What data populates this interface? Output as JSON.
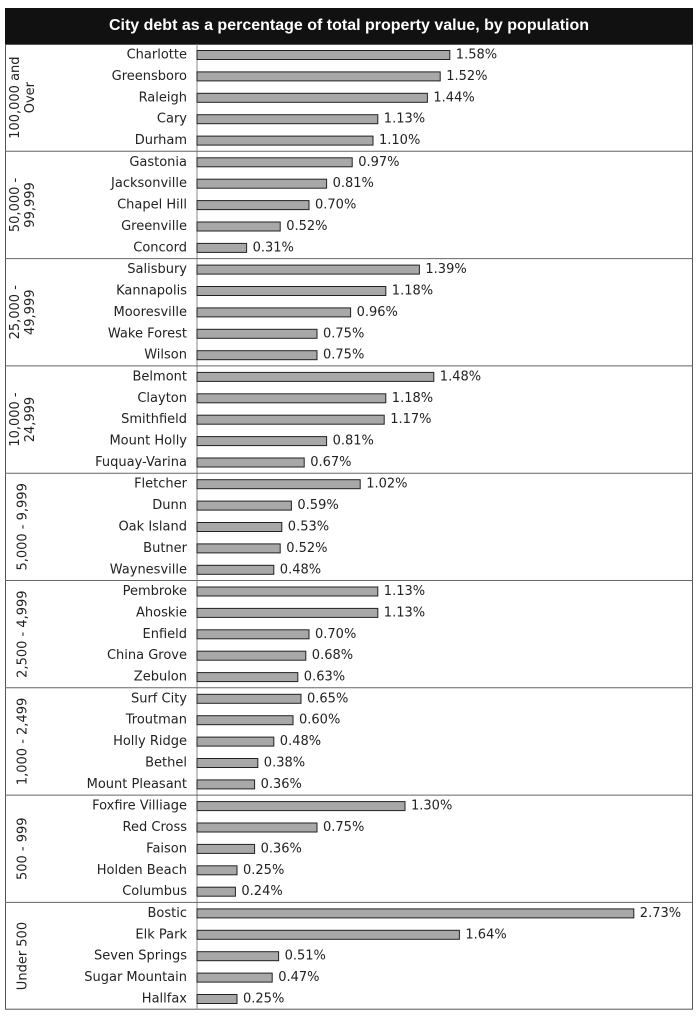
{
  "chart_data": {
    "type": "bar",
    "orientation": "horizontal",
    "title": "City debt as a percentage of total property value, by population",
    "value_format": "percent",
    "xlim": [
      0,
      2.8
    ],
    "grid": false,
    "bar_color": "#a8a8a8",
    "groups": [
      {
        "name": "100,000 and Over",
        "lines": [
          "100,000 and",
          "Over"
        ],
        "categories": [
          "Charlotte",
          "Greensboro",
          "Raleigh",
          "Cary",
          "Durham"
        ],
        "values": [
          1.58,
          1.52,
          1.44,
          1.13,
          1.1
        ]
      },
      {
        "name": "50,000 - 99,999",
        "lines": [
          "50,000 -",
          "99,999"
        ],
        "categories": [
          "Gastonia",
          "Jacksonville",
          "Chapel Hill",
          "Greenville",
          "Concord"
        ],
        "values": [
          0.97,
          0.81,
          0.7,
          0.52,
          0.31
        ]
      },
      {
        "name": "25,000 - 49,999",
        "lines": [
          "25,000 -",
          "49,999"
        ],
        "categories": [
          "Salisbury",
          "Kannapolis",
          "Mooresville",
          "Wake Forest",
          "Wilson"
        ],
        "values": [
          1.39,
          1.18,
          0.96,
          0.75,
          0.75
        ]
      },
      {
        "name": "10,000 - 24,999",
        "lines": [
          "10,000 -",
          "24,999"
        ],
        "categories": [
          "Belmont",
          "Clayton",
          "Smithfield",
          "Mount Holly",
          "Fuquay-Varina"
        ],
        "values": [
          1.48,
          1.18,
          1.17,
          0.81,
          0.67
        ]
      },
      {
        "name": "5,000 - 9,999",
        "lines": [
          "5,000 - 9,999"
        ],
        "categories": [
          "Fletcher",
          "Dunn",
          "Oak Island",
          "Butner",
          "Waynesville"
        ],
        "values": [
          1.02,
          0.59,
          0.53,
          0.52,
          0.48
        ]
      },
      {
        "name": "2,500 - 4,999",
        "lines": [
          "2,500 - 4,999"
        ],
        "categories": [
          "Pembroke",
          "Ahoskie",
          "Enfield",
          "China Grove",
          "Zebulon"
        ],
        "values": [
          1.13,
          1.13,
          0.7,
          0.68,
          0.63
        ]
      },
      {
        "name": "1,000 - 2,499",
        "lines": [
          "1,000 - 2,499"
        ],
        "categories": [
          "Surf City",
          "Troutman",
          "Holly Ridge",
          "Bethel",
          "Mount Pleasant"
        ],
        "values": [
          0.65,
          0.6,
          0.48,
          0.38,
          0.36
        ]
      },
      {
        "name": "500 - 999",
        "lines": [
          "500 - 999"
        ],
        "categories": [
          "Foxfire Villiage",
          "Red Cross",
          "Faison",
          "Holden Beach",
          "Columbus"
        ],
        "values": [
          1.3,
          0.75,
          0.36,
          0.25,
          0.24
        ]
      },
      {
        "name": "Under 500",
        "lines": [
          "Under 500"
        ],
        "categories": [
          "Bostic",
          "Elk Park",
          "Seven Springs",
          "Sugar Mountain",
          "Hallfax"
        ],
        "values": [
          2.73,
          1.64,
          0.51,
          0.47,
          0.25
        ]
      }
    ]
  }
}
